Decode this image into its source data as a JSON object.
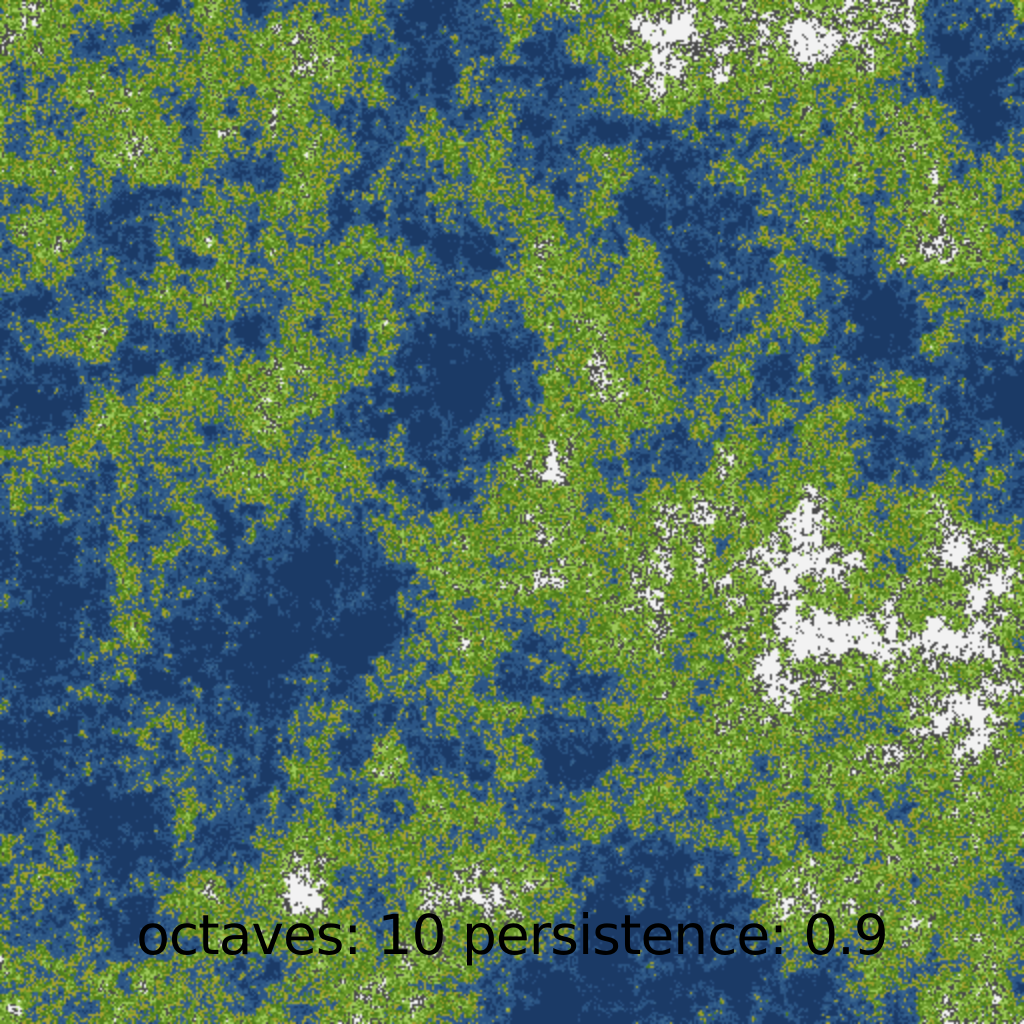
{
  "map": {
    "type": "fractal-noise-terrain",
    "octaves": 10,
    "persistence": 0.9,
    "palette": {
      "deep_water": "#1b3a66",
      "water": "#2c5585",
      "shallow_water": "#39658f",
      "sand": "#a2a12f",
      "grass_dark": "#4f7d1c",
      "grass": "#6c9a2b",
      "grass_light": "#9fc95a",
      "rock": "#4a4a4a",
      "snow": "#f2f2f2"
    }
  },
  "caption": {
    "text": "octaves: 10 persistence: 0.9"
  }
}
